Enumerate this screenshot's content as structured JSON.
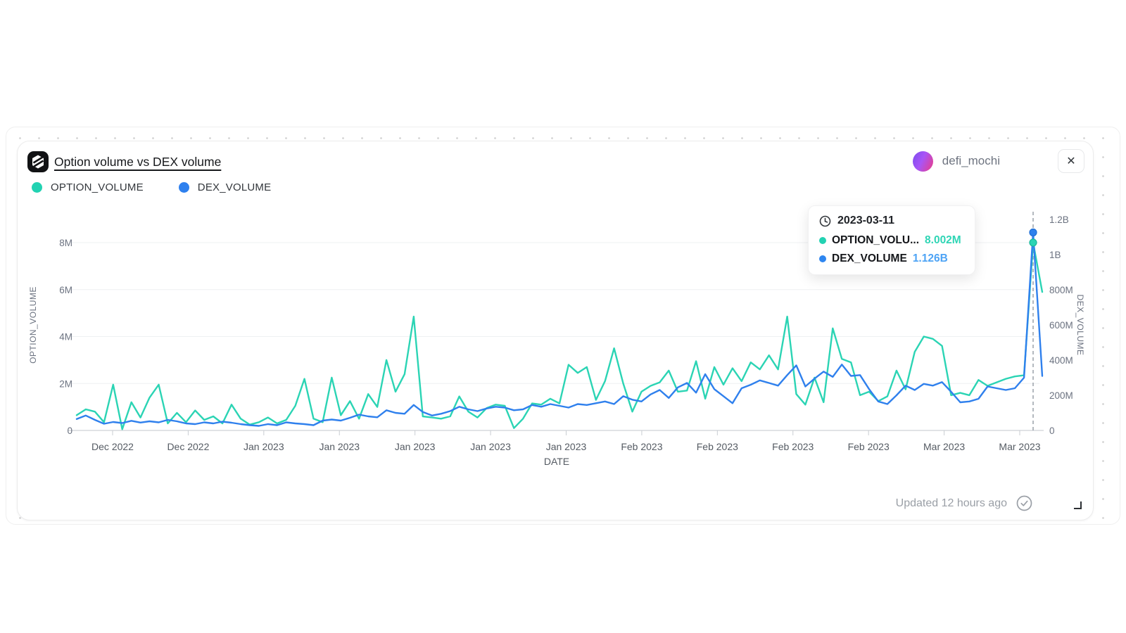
{
  "card": {
    "title": "Option volume vs DEX volume",
    "user": "defi_mochi",
    "close_label": "✕",
    "updated": "Updated 12 hours ago",
    "legend": [
      {
        "label": "OPTION_VOLUME",
        "color": "#22d2b2"
      },
      {
        "label": "DEX_VOLUME",
        "color": "#2e80ee"
      }
    ]
  },
  "tooltip": {
    "date": "2023-03-11",
    "rows": [
      {
        "name": "OPTION_VOLU...",
        "value": "8.002M",
        "color": "#22d2b2",
        "value_color": "#2fd5b5"
      },
      {
        "name": "DEX_VOLUME",
        "value": "1.126B",
        "color": "#2e86f0",
        "value_color": "#4da3f5"
      }
    ]
  },
  "chart_data": {
    "type": "line",
    "title": "Option volume vs DEX volume",
    "xlabel": "DATE",
    "grid": true,
    "legend_position": "top-left",
    "x_ticks": [
      "Dec 2022",
      "Dec 2022",
      "Jan 2023",
      "Jan 2023",
      "Jan 2023",
      "Jan 2023",
      "Jan 2023",
      "Feb 2023",
      "Feb 2023",
      "Feb 2023",
      "Feb 2023",
      "Mar 2023",
      "Mar 2023"
    ],
    "y_left": {
      "label": "OPTION_VOLUME",
      "ticks": [
        "0",
        "2M",
        "4M",
        "6M",
        "8M"
      ],
      "unit": "M",
      "range": [
        0,
        8.99
      ]
    },
    "y_right": {
      "label": "DEX_VOLUME",
      "ticks": [
        "0",
        "200M",
        "400M",
        "600M",
        "800M",
        "1B",
        "1.2B"
      ],
      "unit": "M",
      "range": [
        0,
        1200
      ]
    },
    "highlight_index": 105,
    "highlight_date": "2023-03-11",
    "series": [
      {
        "name": "OPTION_VOLUME",
        "axis": "left",
        "color": "#2bd4b4",
        "unit": "M",
        "values": [
          0.65,
          0.9,
          0.8,
          0.35,
          1.95,
          0.05,
          1.2,
          0.55,
          1.4,
          1.95,
          0.3,
          0.75,
          0.35,
          0.85,
          0.45,
          0.6,
          0.3,
          1.1,
          0.5,
          0.25,
          0.35,
          0.55,
          0.3,
          0.45,
          1.05,
          2.2,
          0.5,
          0.35,
          2.25,
          0.65,
          1.25,
          0.5,
          1.55,
          1.0,
          3.0,
          1.65,
          2.4,
          4.85,
          0.6,
          0.55,
          0.5,
          0.6,
          1.45,
          0.8,
          0.55,
          0.95,
          1.1,
          1.05,
          0.1,
          0.5,
          1.15,
          1.1,
          1.35,
          1.15,
          2.8,
          2.45,
          2.7,
          1.3,
          2.1,
          3.5,
          2.0,
          0.8,
          1.65,
          1.9,
          2.05,
          2.55,
          1.65,
          1.7,
          2.95,
          1.35,
          2.7,
          1.95,
          2.65,
          2.1,
          2.9,
          2.6,
          3.2,
          2.6,
          4.85,
          1.55,
          1.1,
          2.25,
          1.2,
          4.35,
          3.05,
          2.9,
          1.5,
          1.65,
          1.25,
          1.45,
          2.55,
          1.75,
          3.35,
          4.0,
          3.9,
          3.6,
          1.5,
          1.6,
          1.5,
          2.15,
          1.9,
          2.05,
          2.2,
          2.3,
          2.35,
          8.002,
          5.9
        ]
      },
      {
        "name": "DEX_VOLUME",
        "axis": "right",
        "color": "#2f80ed",
        "unit": "M",
        "values": [
          65,
          85,
          60,
          38,
          48,
          42,
          55,
          45,
          52,
          46,
          60,
          52,
          40,
          36,
          46,
          40,
          50,
          44,
          36,
          30,
          26,
          36,
          30,
          46,
          40,
          36,
          30,
          56,
          62,
          56,
          72,
          90,
          80,
          75,
          115,
          100,
          95,
          145,
          105,
          85,
          95,
          110,
          135,
          120,
          110,
          125,
          135,
          130,
          115,
          120,
          145,
          135,
          150,
          140,
          130,
          150,
          145,
          155,
          165,
          150,
          195,
          175,
          165,
          205,
          230,
          185,
          245,
          270,
          215,
          320,
          235,
          195,
          155,
          240,
          260,
          285,
          270,
          255,
          315,
          370,
          250,
          295,
          335,
          305,
          375,
          310,
          315,
          235,
          165,
          150,
          200,
          255,
          230,
          265,
          255,
          275,
          220,
          160,
          165,
          180,
          250,
          240,
          230,
          240,
          300,
          1126,
          310
        ]
      }
    ]
  }
}
